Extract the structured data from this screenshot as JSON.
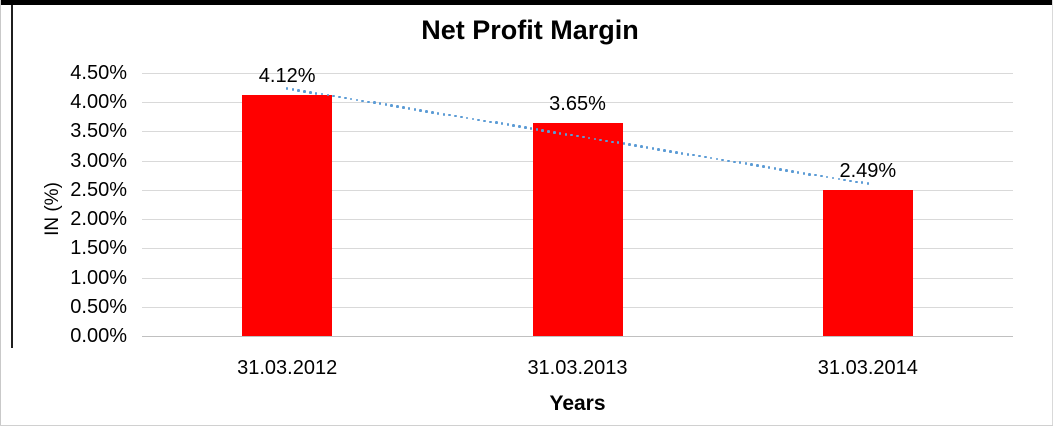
{
  "chart": {
    "title": "Net Profit Margin",
    "x_axis_title": "Years",
    "y_axis_title": "IN (%)"
  },
  "chart_data": {
    "type": "bar",
    "title": "Net Profit Margin",
    "xlabel": "Years",
    "ylabel": "IN (%)",
    "categories": [
      "31.03.2012",
      "31.03.2013",
      "31.03.2014"
    ],
    "values": [
      4.12,
      3.65,
      2.49
    ],
    "data_labels": [
      "4.12%",
      "3.65%",
      "2.49%"
    ],
    "y_tick_labels": [
      "0.00%",
      "0.50%",
      "1.00%",
      "1.50%",
      "2.00%",
      "2.50%",
      "3.00%",
      "3.50%",
      "4.00%",
      "4.50%"
    ],
    "ylim": [
      0,
      4.5
    ],
    "y_step": 0.5,
    "grid": true,
    "legend": false,
    "bar_color": "#ff0000",
    "gridline_color": "#d9d9d9",
    "trendline": {
      "type": "linear",
      "style": "dotted",
      "color": "#5b9bd5"
    }
  }
}
